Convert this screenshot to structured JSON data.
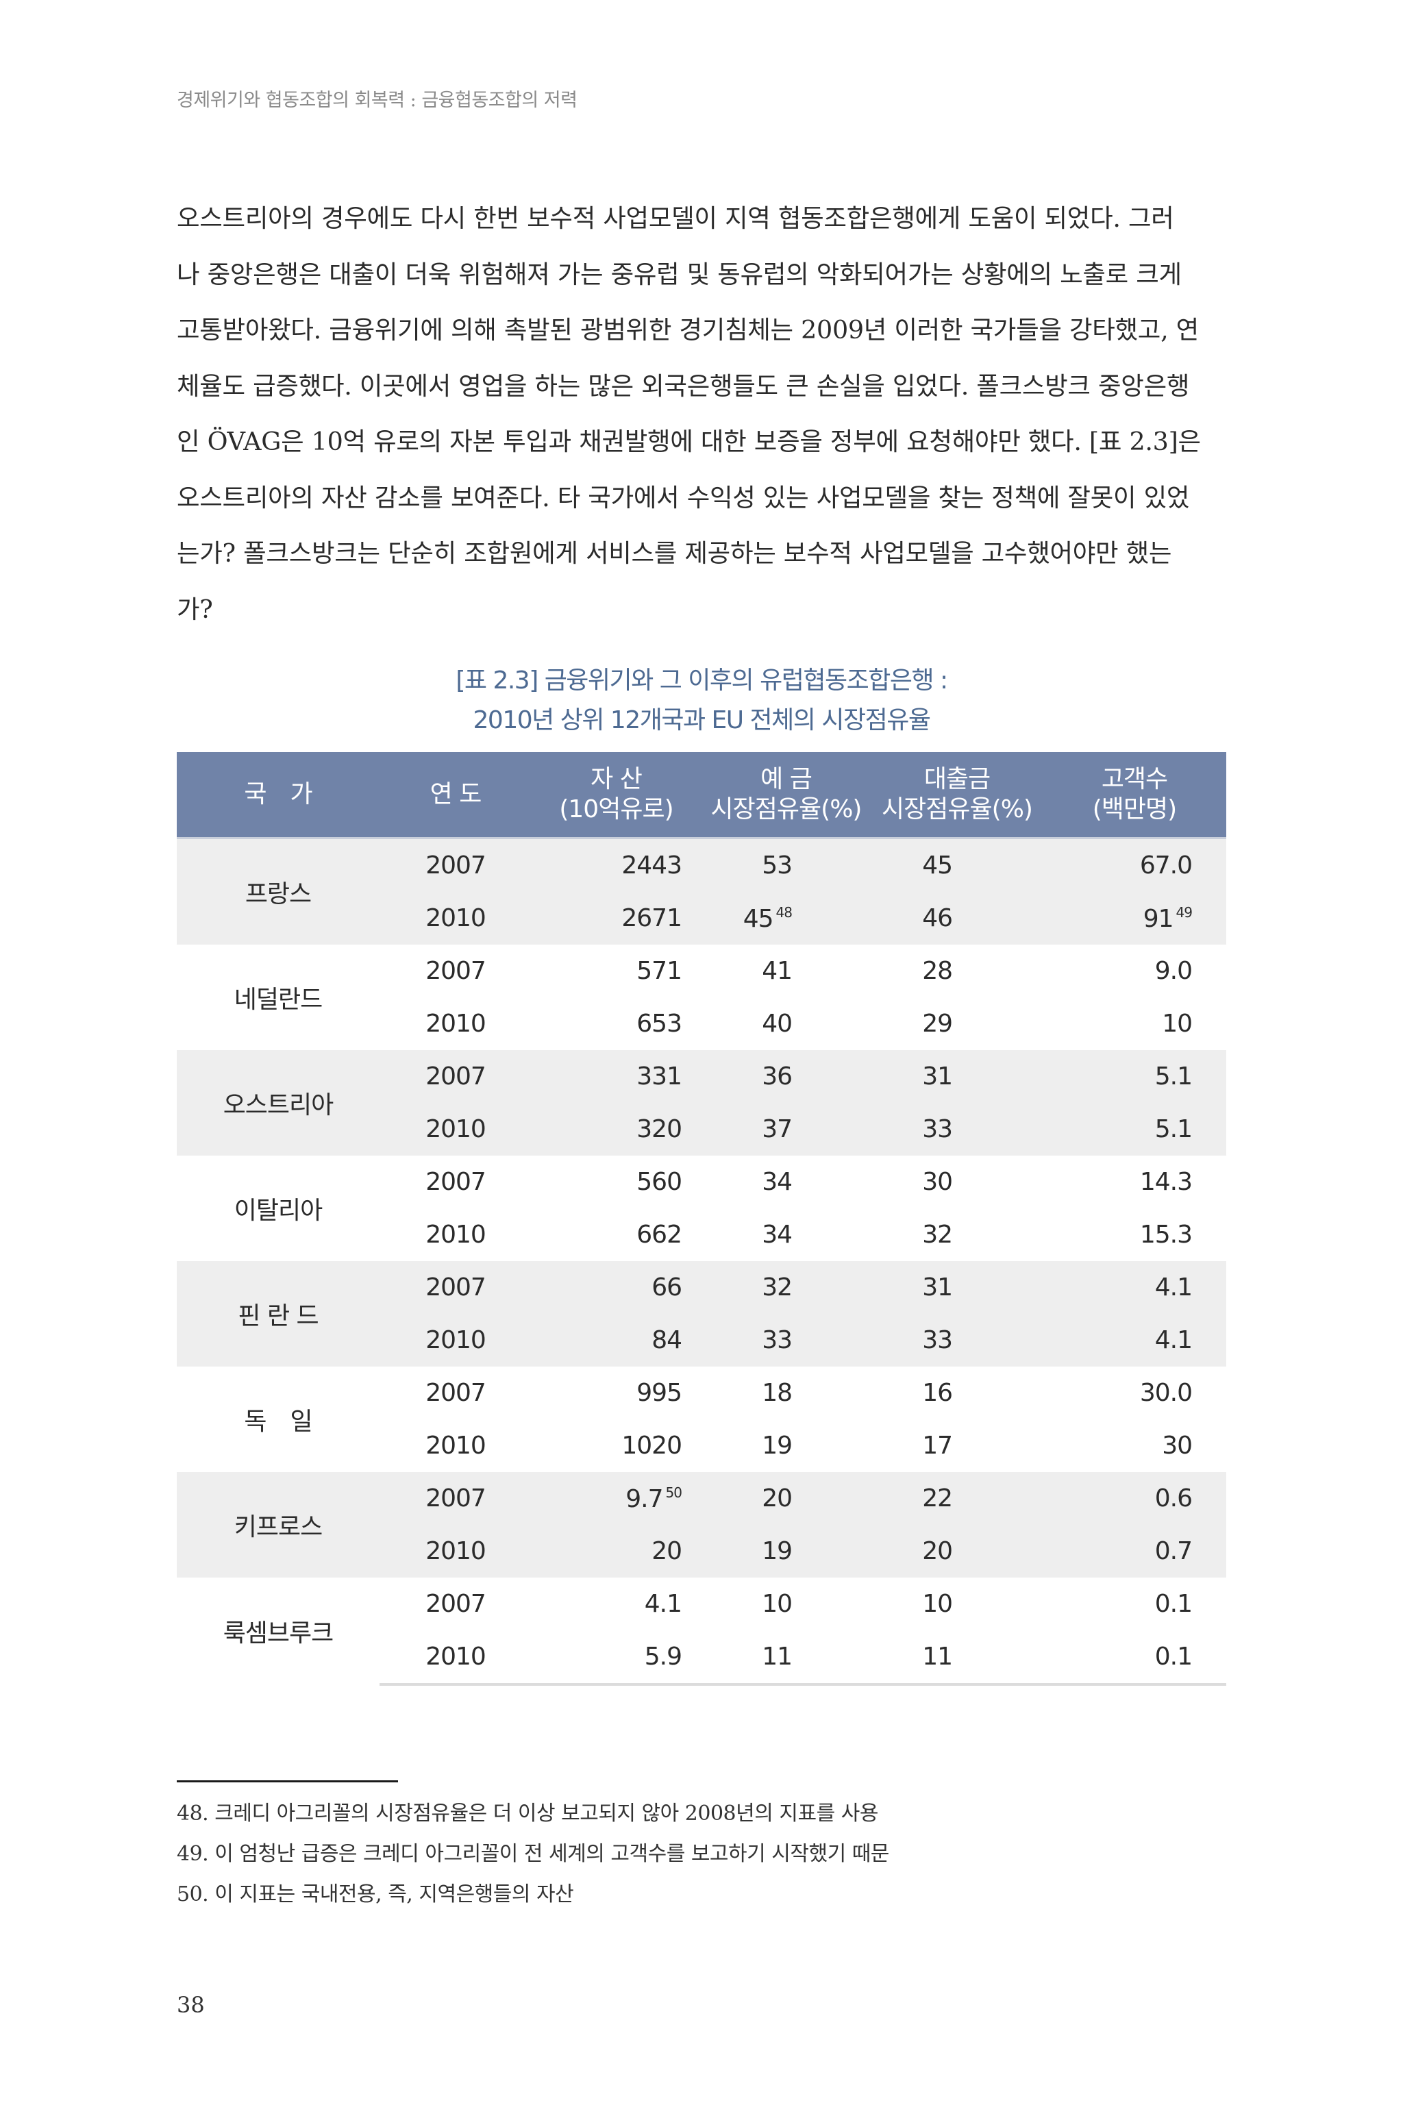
{
  "running_head": "경제위기와 협동조합의 회복력 : 금융협동조합의 저력",
  "body_lines": [
    "오스트리아의 경우에도 다시 한번 보수적 사업모델이 지역 협동조합은행에게 도움이 되었다. 그러",
    "나 중앙은행은 대출이 더욱 위험해져 가는 중유럽 및 동유럽의 악화되어가는 상황에의 노출로 크게",
    "고통받아왔다. 금융위기에 의해 촉발된 광범위한 경기침체는 2009년 이러한 국가들을 강타했고, 연",
    "체율도 급증했다. 이곳에서 영업을 하는 많은 외국은행들도 큰 손실을 입었다. 폴크스방크 중앙은행",
    "인 ÖVAG은 10억 유로의 자본 투입과 채권발행에 대한 보증을 정부에 요청해야만 했다. [표 2.3]은",
    "오스트리아의 자산 감소를 보여준다. 타 국가에서 수익성 있는 사업모델을 찾는 정책에 잘못이 있었",
    "는가? 폴크스방크는 단순히 조합원에게 서비스를 제공하는 보수적 사업모델을 고수했어야만 했는",
    "가?"
  ],
  "table_caption": {
    "line1": "[표 2.3] 금융위기와 그 이후의 유럽협동조합은행 :",
    "line2": "2010년 상위 12개국과 EU 전체의 시장점유율"
  },
  "table_header": {
    "country": "국　가",
    "year": "연 도",
    "assets_l1": "자 산",
    "assets_l2": "(10억유로)",
    "deposits_l1": "예 금",
    "deposits_l2": "시장점유율(%)",
    "loans_l1": "대출금",
    "loans_l2": "시장점유율(%)",
    "customers_l1": "고객수",
    "customers_l2": "(백만명)"
  },
  "table_rows": [
    {
      "country": "프랑스",
      "shade": true,
      "rows": [
        {
          "year": "2007",
          "assets": "2443",
          "deposits": "53",
          "loans": "45",
          "customers": "67.0"
        },
        {
          "year": "2010",
          "assets": "2671",
          "deposits": "45",
          "deposits_fn": "48",
          "loans": "46",
          "customers": "91",
          "customers_fn": "49"
        }
      ]
    },
    {
      "country": "네덜란드",
      "shade": false,
      "rows": [
        {
          "year": "2007",
          "assets": "571",
          "deposits": "41",
          "loans": "28",
          "customers": "9.0"
        },
        {
          "year": "2010",
          "assets": "653",
          "deposits": "40",
          "loans": "29",
          "customers": "10"
        }
      ]
    },
    {
      "country": "오스트리아",
      "shade": true,
      "rows": [
        {
          "year": "2007",
          "assets": "331",
          "deposits": "36",
          "loans": "31",
          "customers": "5.1"
        },
        {
          "year": "2010",
          "assets": "320",
          "deposits": "37",
          "loans": "33",
          "customers": "5.1"
        }
      ]
    },
    {
      "country": "이탈리아",
      "shade": false,
      "rows": [
        {
          "year": "2007",
          "assets": "560",
          "deposits": "34",
          "loans": "30",
          "customers": "14.3"
        },
        {
          "year": "2010",
          "assets": "662",
          "deposits": "34",
          "loans": "32",
          "customers": "15.3"
        }
      ]
    },
    {
      "country": "핀 란 드",
      "shade": true,
      "rows": [
        {
          "year": "2007",
          "assets": "66",
          "deposits": "32",
          "loans": "31",
          "customers": "4.1"
        },
        {
          "year": "2010",
          "assets": "84",
          "deposits": "33",
          "loans": "33",
          "customers": "4.1"
        }
      ]
    },
    {
      "country": "독　일",
      "shade": false,
      "rows": [
        {
          "year": "2007",
          "assets": "995",
          "deposits": "18",
          "loans": "16",
          "customers": "30.0"
        },
        {
          "year": "2010",
          "assets": "1020",
          "deposits": "19",
          "loans": "17",
          "customers": "30"
        }
      ]
    },
    {
      "country": "키프로스",
      "shade": true,
      "rows": [
        {
          "year": "2007",
          "assets": "9.7",
          "assets_fn": "50",
          "deposits": "20",
          "loans": "22",
          "customers": "0.6"
        },
        {
          "year": "2010",
          "assets": "20",
          "deposits": "19",
          "loans": "20",
          "customers": "0.7"
        }
      ]
    },
    {
      "country": "룩셈브루크",
      "shade": false,
      "rows": [
        {
          "year": "2007",
          "assets": "4.1",
          "deposits": "10",
          "loans": "10",
          "customers": "0.1"
        },
        {
          "year": "2010",
          "assets": "5.9",
          "deposits": "11",
          "loans": "11",
          "customers": "0.1"
        }
      ]
    }
  ],
  "footnotes": [
    "48. 크레디 아그리꼴의 시장점유율은 더 이상 보고되지 않아 2008년의 지표를 사용",
    "49. 이 엄청난 급증은 크레디 아그리꼴이 전 세계의 고객수를 보고하기 시작했기 때문",
    "50. 이 지표는 국내전용, 즉, 지역은행들의 자산"
  ],
  "page_number": "38",
  "colors": {
    "header_bg": "#7083a8",
    "caption": "#4d6a92",
    "shade_row": "#eeeeee"
  }
}
